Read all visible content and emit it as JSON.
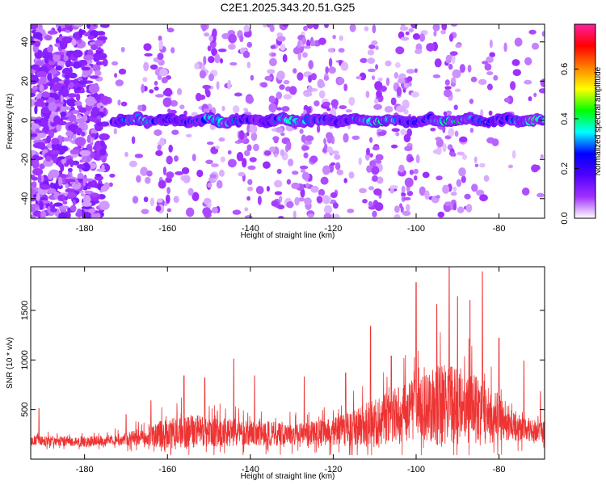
{
  "title": "C2E1.2025.343.20.51.G25",
  "chart_data": [
    {
      "type": "heatmap",
      "xlabel": "Height of straight line (km)",
      "ylabel": "Frequency (Hz)",
      "xlim": [
        -193,
        -69
      ],
      "ylim": [
        -50,
        49
      ],
      "xticks": [
        -180,
        -160,
        -140,
        -120,
        -100,
        -80
      ],
      "yticks": [
        -40,
        -20,
        0,
        20,
        40
      ],
      "xtick_labels": [
        "-180",
        "-160",
        "-140",
        "-120",
        "-100",
        "-80"
      ],
      "ytick_labels": [
        "-40",
        "-20",
        "0",
        "20",
        "40"
      ],
      "band_center_hz": 0,
      "band_start_km": -173,
      "colorbar": {
        "label": "Normalized spectral amplitude",
        "range": [
          0,
          0.78
        ],
        "ticks": [
          0.0,
          0.2,
          0.4,
          0.6
        ],
        "tick_labels": [
          "0.0",
          "0.2",
          "0.4",
          "0.6"
        ]
      }
    },
    {
      "type": "line",
      "xlabel": "Height of straight line (km)",
      "ylabel": "SNR (10 * v/v)",
      "xlim": [
        -193,
        -69
      ],
      "ylim": [
        0,
        1940
      ],
      "xticks": [
        -180,
        -160,
        -140,
        -120,
        -100,
        -80
      ],
      "yticks": [
        500,
        1000,
        1500
      ],
      "xtick_labels": [
        "-180",
        "-160",
        "-140",
        "-120",
        "-100",
        "-80"
      ],
      "ytick_labels": [
        "500",
        "1000",
        "1500"
      ],
      "line_color": "#ee3333",
      "envelope": {
        "x": [
          -193,
          -180,
          -171,
          -165,
          -158,
          -150,
          -140,
          -130,
          -120,
          -112,
          -105,
          -100,
          -94,
          -90,
          -86,
          -80,
          -75,
          -69
        ],
        "baseline": [
          180,
          170,
          190,
          230,
          260,
          260,
          250,
          240,
          260,
          320,
          420,
          480,
          500,
          520,
          480,
          380,
          300,
          260
        ],
        "amplitude": [
          150,
          140,
          180,
          300,
          520,
          450,
          380,
          330,
          400,
          650,
          800,
          900,
          1200,
          1100,
          1050,
          700,
          380,
          300
        ]
      },
      "peaks": [
        {
          "x": -191,
          "y": 510
        },
        {
          "x": -170,
          "y": 450
        },
        {
          "x": -164,
          "y": 590
        },
        {
          "x": -156,
          "y": 840
        },
        {
          "x": -151,
          "y": 820
        },
        {
          "x": -144,
          "y": 1010
        },
        {
          "x": -139,
          "y": 840
        },
        {
          "x": -127,
          "y": 830
        },
        {
          "x": -117,
          "y": 870
        },
        {
          "x": -111,
          "y": 1340
        },
        {
          "x": -106,
          "y": 1040
        },
        {
          "x": -100,
          "y": 1780
        },
        {
          "x": -95,
          "y": 1560
        },
        {
          "x": -92,
          "y": 1940
        },
        {
          "x": -90,
          "y": 1640
        },
        {
          "x": -87,
          "y": 1600
        },
        {
          "x": -84,
          "y": 1890
        },
        {
          "x": -80,
          "y": 1220
        },
        {
          "x": -74,
          "y": 990
        },
        {
          "x": -70,
          "y": 680
        }
      ]
    }
  ],
  "colors": {
    "colorbar": [
      "#ffffff",
      "#a030ff",
      "#5000ff",
      "#0000ff",
      "#00ffff",
      "#00ff00",
      "#ffff00",
      "#ff8000",
      "#ff0000",
      "#ff20a0"
    ]
  }
}
